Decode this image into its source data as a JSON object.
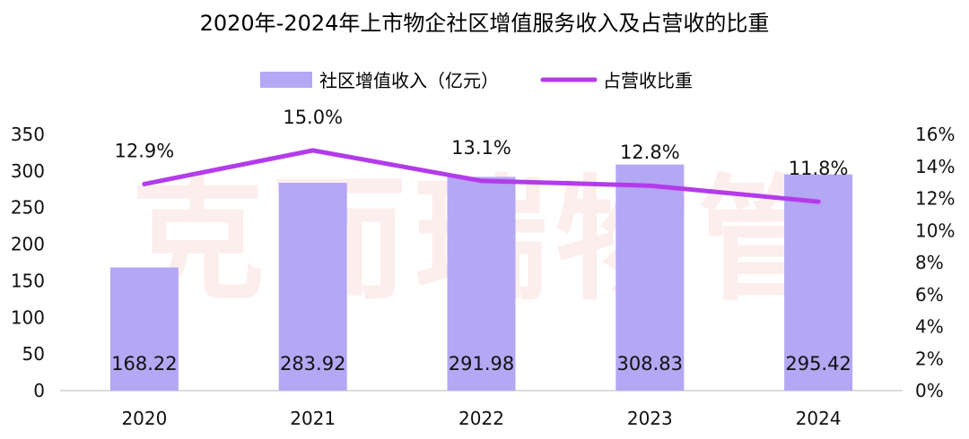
{
  "watermark": "克而瑞物管",
  "chart_data": {
    "type": "bar+line",
    "title": "2020年-2024年上市物企社区增值服务收入及占营收的比重",
    "categories": [
      "2020",
      "2021",
      "2022",
      "2023",
      "2024"
    ],
    "series": [
      {
        "name": "社区增值收入（亿元）",
        "type": "bar",
        "axis": "left",
        "color": "#b4a7f4",
        "values": [
          168.22,
          283.92,
          291.98,
          308.83,
          295.42
        ],
        "labels": [
          "168.22",
          "283.92",
          "291.98",
          "308.83",
          "295.42"
        ]
      },
      {
        "name": "占营收比重",
        "type": "line",
        "axis": "right",
        "color": "#b33bea",
        "values": [
          12.9,
          15.0,
          13.1,
          12.8,
          11.8
        ],
        "labels": [
          "12.9%",
          "15.0%",
          "13.1%",
          "12.8%",
          "11.8%"
        ]
      }
    ],
    "y_left": {
      "min": 0,
      "max": 350,
      "ticks": [
        "0",
        "50",
        "100",
        "150",
        "200",
        "250",
        "300",
        "350"
      ]
    },
    "y_right": {
      "min": 0,
      "max": 16,
      "ticks": [
        "0%",
        "2%",
        "4%",
        "6%",
        "8%",
        "10%",
        "12%",
        "14%",
        "16%"
      ]
    },
    "legend_position": "top-center",
    "grid": false
  }
}
